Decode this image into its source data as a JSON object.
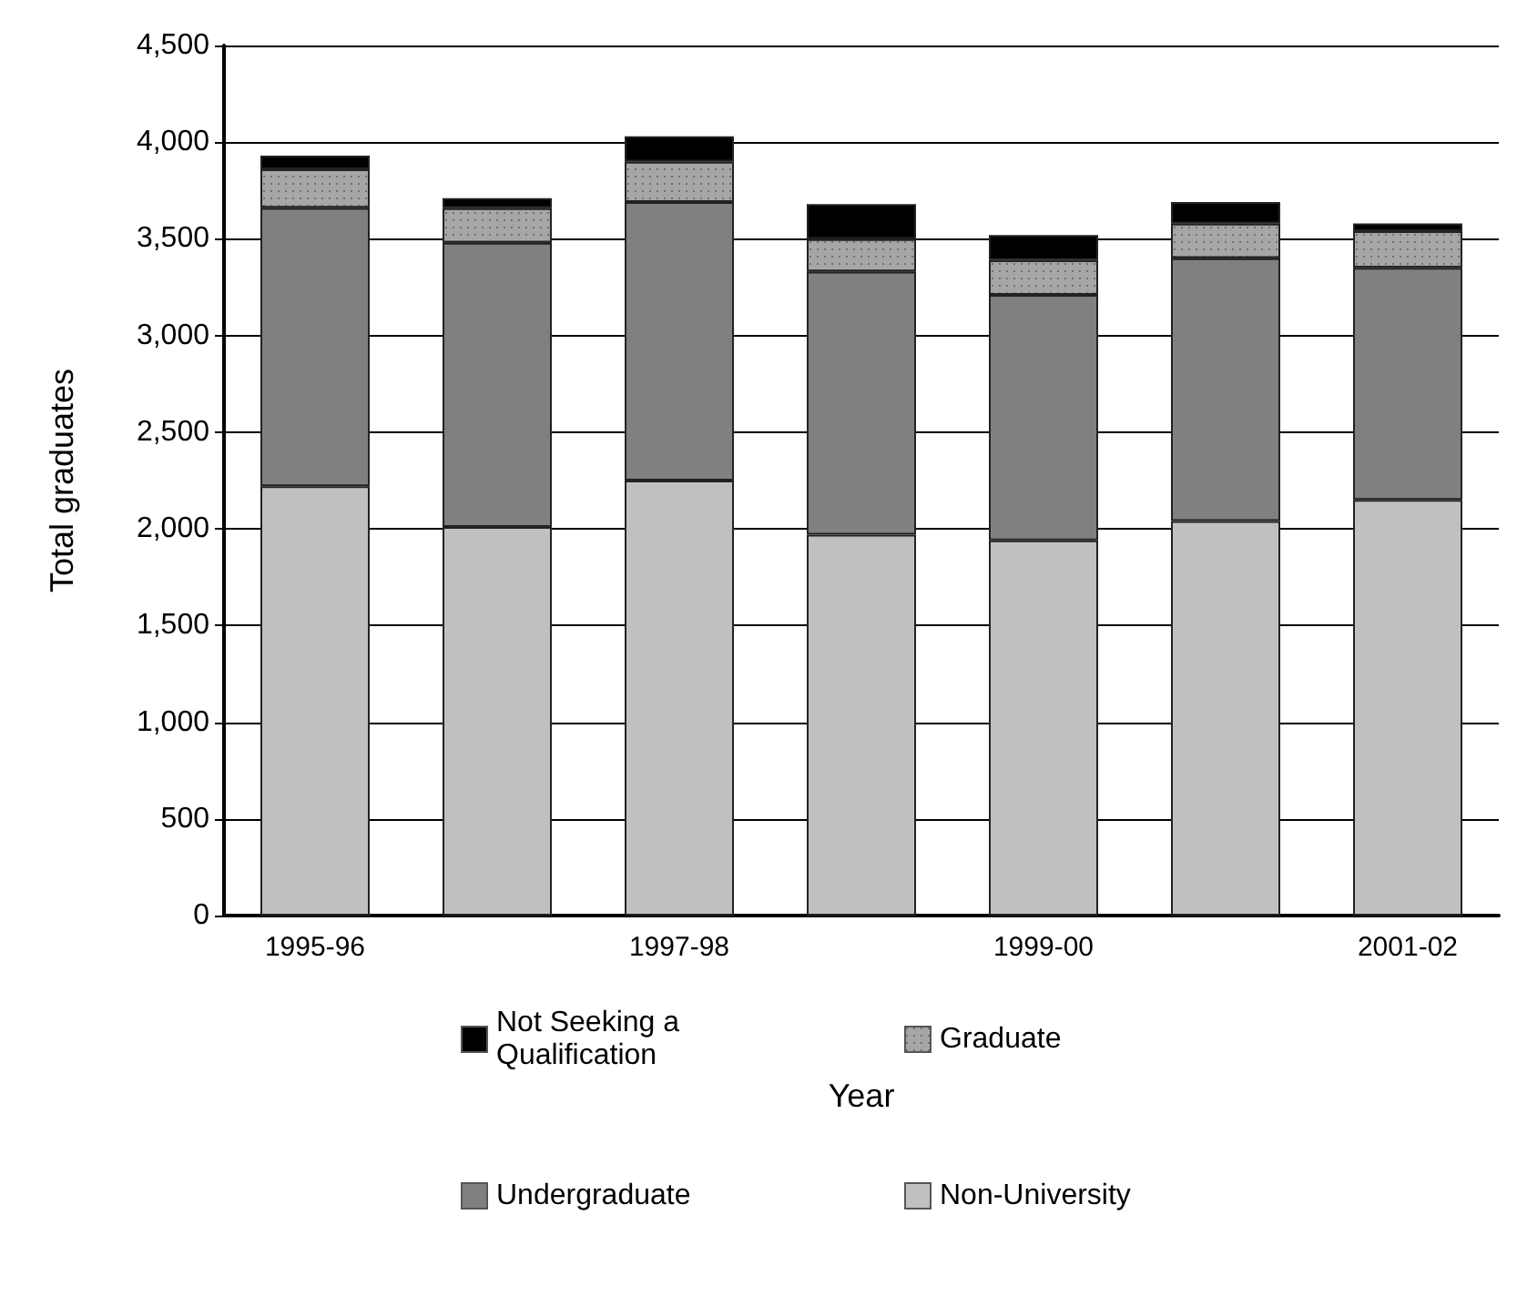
{
  "chart_data": {
    "type": "bar",
    "stacked": true,
    "xlabel": "Year",
    "ylabel": "Total graduates",
    "categories": [
      "1995-96",
      null,
      "1997-98",
      null,
      "1999-00",
      null,
      "2001-02"
    ],
    "series": [
      {
        "name": "Non-University",
        "color": "#c0c0c0",
        "values": [
          2220,
          2010,
          2250,
          1970,
          1940,
          2040,
          2150
        ]
      },
      {
        "name": "Undergraduate",
        "color": "#808080",
        "values": [
          1440,
          1470,
          1440,
          1360,
          1270,
          1360,
          1200
        ]
      },
      {
        "name": "Graduate",
        "color": "#a6a6a6",
        "values": [
          200,
          180,
          210,
          170,
          180,
          180,
          190
        ]
      },
      {
        "name": "Not Seeking a Qualification",
        "color": "#000000",
        "values": [
          70,
          50,
          130,
          180,
          130,
          110,
          40
        ]
      }
    ],
    "ylim": [
      0,
      4500
    ],
    "yticks": [
      0,
      500,
      {
        "value": 1000,
        "label": "1,000"
      },
      {
        "value": 1500,
        "label": "1,500"
      },
      {
        "value": 2000,
        "label": "2,000"
      },
      {
        "value": 2500,
        "label": "2,500"
      },
      {
        "value": 3000,
        "label": "3,000"
      },
      {
        "value": 3500,
        "label": "3,500"
      },
      {
        "value": 4000,
        "label": "4,000"
      },
      {
        "value": 4500,
        "label": "4,500"
      }
    ],
    "grid": "y",
    "legend": "bottom"
  }
}
